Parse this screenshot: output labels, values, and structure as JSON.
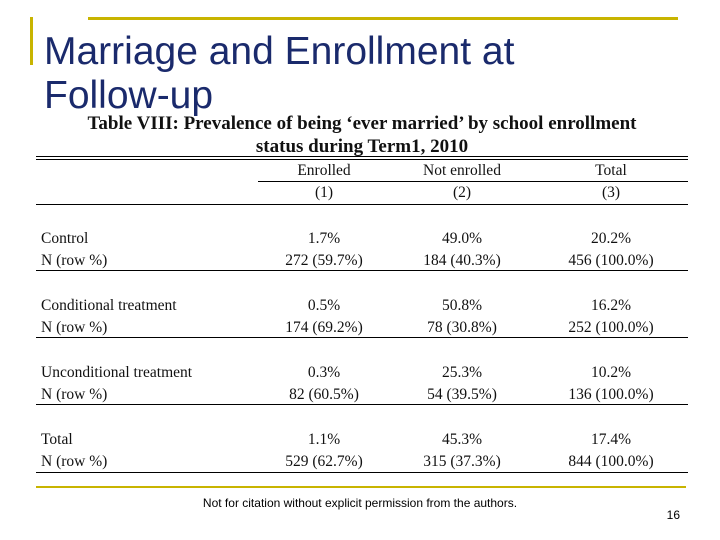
{
  "slide": {
    "title": "Marriage and Enrollment at Follow-up",
    "footer_note": "Not for citation without explicit permission from the authors.",
    "page_number": "16"
  },
  "table": {
    "caption_line1": "Table VIII: Prevalence of being ‘ever married’ by school enrollment",
    "caption_line2": "status during Term1, 2010",
    "headers": [
      {
        "label": "Enrolled",
        "num": "(1)"
      },
      {
        "label": "Not enrolled",
        "num": "(2)"
      },
      {
        "label": "Total",
        "num": "(3)"
      }
    ],
    "groups": [
      {
        "label": "Control",
        "pct": [
          "1.7%",
          "49.0%",
          "20.2%"
        ],
        "n_label": "N (row %)",
        "n": [
          "272 (59.7%)",
          "184 (40.3%)",
          "456 (100.0%)"
        ]
      },
      {
        "label": "Conditional treatment",
        "pct": [
          "0.5%",
          "50.8%",
          "16.2%"
        ],
        "n_label": "N (row %)",
        "n": [
          "174 (69.2%)",
          "78 (30.8%)",
          "252 (100.0%)"
        ]
      },
      {
        "label": "Unconditional treatment",
        "pct": [
          "0.3%",
          "25.3%",
          "10.2%"
        ],
        "n_label": "N (row %)",
        "n": [
          "82 (60.5%)",
          "54 (39.5%)",
          "136 (100.0%)"
        ]
      },
      {
        "label": "Total",
        "pct": [
          "1.1%",
          "45.3%",
          "17.4%"
        ],
        "n_label": "N (row %)",
        "n": [
          "529 (62.7%)",
          "315 (37.3%)",
          "844 (100.0%)"
        ]
      }
    ]
  }
}
